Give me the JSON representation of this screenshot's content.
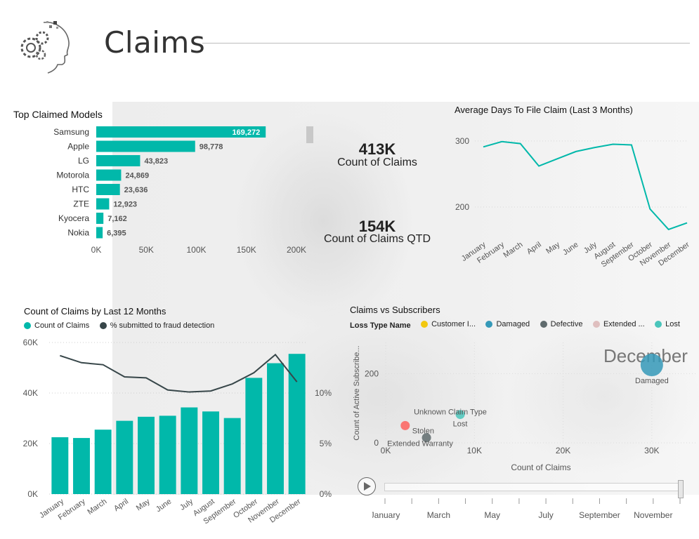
{
  "page": {
    "title": "Claims"
  },
  "colors": {
    "teal": "#01B8AA",
    "dark": "#374649",
    "yellow": "#F2C80F",
    "blue": "#3599B8",
    "gray": "#5F6B6D",
    "pink": "#DFBFBF",
    "red": "#FD625E"
  },
  "kpis": [
    {
      "value": "413K",
      "label": "Count of Claims"
    },
    {
      "value": "154K",
      "label": "Count of Claims QTD"
    }
  ],
  "top_models": {
    "title": "Top Claimed Models",
    "chart_data": {
      "type": "bar",
      "orientation": "horizontal",
      "categories": [
        "Samsung",
        "Apple",
        "LG",
        "Motorola",
        "HTC",
        "ZTE",
        "Kyocera",
        "Nokia"
      ],
      "values": [
        169272,
        98778,
        43823,
        24869,
        23636,
        12923,
        7162,
        6395
      ],
      "value_labels": [
        "169,272",
        "98,778",
        "43,823",
        "24,869",
        "23,636",
        "12,923",
        "7,162",
        "6,395"
      ],
      "xticks": [
        "0K",
        "50K",
        "100K",
        "150K",
        "200K"
      ],
      "xlim": [
        0,
        200000
      ]
    }
  },
  "avg_days": {
    "title": "Average Days To File Claim (Last 3 Months)",
    "chart_data": {
      "type": "line",
      "categories": [
        "January",
        "February",
        "March",
        "April",
        "May",
        "June",
        "July",
        "August",
        "September",
        "October",
        "November",
        "December"
      ],
      "values": [
        291,
        299,
        296,
        262,
        273,
        284,
        290,
        295,
        294,
        197,
        166,
        176
      ],
      "yticks": [
        "300",
        "200"
      ],
      "ylim": [
        150,
        320
      ]
    }
  },
  "claims_12m": {
    "title": "Count of Claims by Last 12 Months",
    "legend": [
      {
        "label": "Count of Claims",
        "color": "#01B8AA"
      },
      {
        "label": "% submitted to fraud detection",
        "color": "#374649"
      }
    ],
    "chart_data": {
      "type": "bar",
      "categories": [
        "January",
        "February",
        "March",
        "April",
        "May",
        "June",
        "July",
        "August",
        "September",
        "October",
        "November",
        "December"
      ],
      "series": [
        {
          "name": "Count of Claims",
          "type": "bar",
          "values": [
            22500,
            22200,
            25500,
            29000,
            30600,
            31000,
            34300,
            32700,
            30100,
            46000,
            51800,
            55500
          ]
        },
        {
          "name": "% submitted to fraud detection",
          "type": "line",
          "values": [
            13.7,
            13.0,
            12.8,
            11.6,
            11.5,
            10.3,
            10.1,
            10.2,
            10.9,
            12.0,
            13.8,
            11.1
          ]
        }
      ],
      "yticks_left": [
        "0K",
        "20K",
        "40K",
        "60K"
      ],
      "ylim_left": [
        0,
        60000
      ],
      "yticks_right": [
        "0%",
        "5%",
        "10%"
      ],
      "ylim_right": [
        0,
        15
      ]
    }
  },
  "claims_vs_subs": {
    "title": "Claims vs Subscribers",
    "legend_title": "Loss Type Name",
    "legend": [
      {
        "label": "Customer I...",
        "color": "#F2C80F"
      },
      {
        "label": "Damaged",
        "color": "#3599B8"
      },
      {
        "label": "Defective",
        "color": "#5F6B6D"
      },
      {
        "label": "Extended ...",
        "color": "#DFBFBF"
      },
      {
        "label": "Lost",
        "color": "#4AC5BB"
      }
    ],
    "play_axis_value": "December",
    "chart_data": {
      "type": "scatter",
      "xlabel": "Count of Claims",
      "ylabel": "Count of Active Subscribe...",
      "xticks": [
        "0K",
        "10K",
        "20K",
        "30K"
      ],
      "xlim": [
        0,
        35000
      ],
      "yticks": [
        "0",
        "200"
      ],
      "ylim": [
        0,
        290
      ],
      "points": [
        {
          "label": "Damaged",
          "x": 30000,
          "y": 225,
          "color": "#3599B8",
          "size": "large"
        },
        {
          "label": "Lost",
          "x": 8400,
          "y": 82,
          "color": "#4AC5BB",
          "size": "small"
        },
        {
          "label": "Unknown Claim Type",
          "x": 8400,
          "y": 82,
          "color": "#4AC5BB",
          "size": "hidden"
        },
        {
          "label": "Stolen",
          "x": 2200,
          "y": 50,
          "color": "#FD625E",
          "size": "small"
        },
        {
          "label": "Extended Warranty",
          "x": 4600,
          "y": 15,
          "color": "#5F6B6D",
          "size": "small"
        }
      ]
    }
  },
  "play_axis": {
    "labels": [
      "January",
      "March",
      "May",
      "July",
      "September",
      "November"
    ]
  }
}
